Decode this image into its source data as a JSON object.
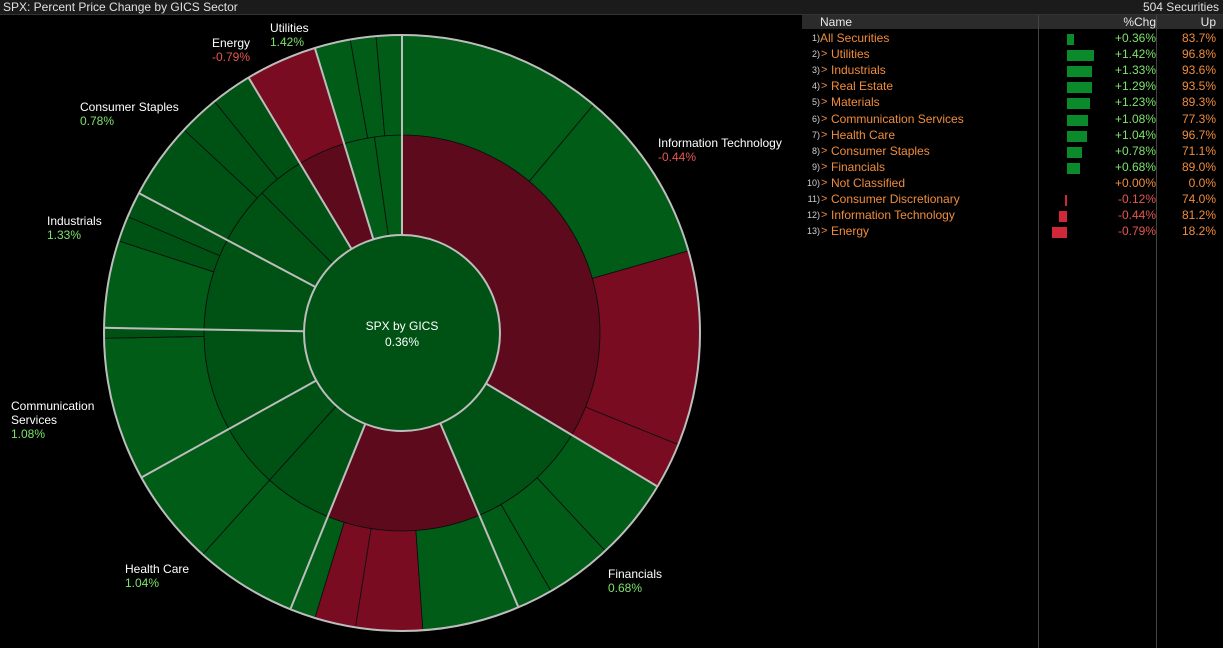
{
  "header": {
    "title": "SPX: Percent Price Change by GICS Sector",
    "count": "504 Securities"
  },
  "center": {
    "label": "SPX by GICS",
    "value": "0.36%"
  },
  "sector_labels": [
    {
      "name": "Utilities",
      "value": "1.42%",
      "dir": "pos"
    },
    {
      "name": "Energy",
      "value": "-0.79%",
      "dir": "neg"
    },
    {
      "name": "Consumer Staples",
      "value": "0.78%",
      "dir": "pos"
    },
    {
      "name": "Information Technology",
      "value": "-0.44%",
      "dir": "neg"
    },
    {
      "name": "Industrials",
      "value": "1.33%",
      "dir": "pos"
    },
    {
      "name": "Communication",
      "name2": "Services",
      "value": "1.08%",
      "dir": "pos"
    },
    {
      "name": "Health Care",
      "value": "1.04%",
      "dir": "pos"
    },
    {
      "name": "Financials",
      "value": "0.68%",
      "dir": "pos"
    }
  ],
  "table": {
    "columns": {
      "name": "Name",
      "chg": "%Chg",
      "up": "Up"
    },
    "rows": [
      {
        "num": "1)",
        "name": "All Securities",
        "caret": "",
        "chg": "+0.36%",
        "up": "83.7%",
        "value": 0.36
      },
      {
        "num": "2)",
        "name": "Utilities",
        "caret": ">",
        "chg": "+1.42%",
        "up": "96.8%",
        "value": 1.42
      },
      {
        "num": "3)",
        "name": "Industrials",
        "caret": ">",
        "chg": "+1.33%",
        "up": "93.6%",
        "value": 1.33
      },
      {
        "num": "4)",
        "name": "Real Estate",
        "caret": ">",
        "chg": "+1.29%",
        "up": "93.5%",
        "value": 1.29
      },
      {
        "num": "5)",
        "name": "Materials",
        "caret": ">",
        "chg": "+1.23%",
        "up": "89.3%",
        "value": 1.23
      },
      {
        "num": "6)",
        "name": "Communication Services",
        "caret": ">",
        "chg": "+1.08%",
        "up": "77.3%",
        "value": 1.08
      },
      {
        "num": "7)",
        "name": "Health Care",
        "caret": ">",
        "chg": "+1.04%",
        "up": "96.7%",
        "value": 1.04
      },
      {
        "num": "8)",
        "name": "Consumer Staples",
        "caret": ">",
        "chg": "+0.78%",
        "up": "71.1%",
        "value": 0.78
      },
      {
        "num": "9)",
        "name": "Financials",
        "caret": ">",
        "chg": "+0.68%",
        "up": "89.0%",
        "value": 0.68
      },
      {
        "num": "10)",
        "name": "Not Classified",
        "caret": ">",
        "chg": "+0.00%",
        "up": "0.0%",
        "value": 0.0
      },
      {
        "num": "11)",
        "name": "Consumer Discretionary",
        "caret": ">",
        "chg": "-0.12%",
        "up": "74.0%",
        "value": -0.12
      },
      {
        "num": "12)",
        "name": "Information Technology",
        "caret": ">",
        "chg": "-0.44%",
        "up": "81.2%",
        "value": -0.44
      },
      {
        "num": "13)",
        "name": "Energy",
        "caret": ">",
        "chg": "-0.79%",
        "up": "18.2%",
        "value": -0.79
      }
    ]
  },
  "colors": {
    "up_dark": "#005214",
    "up": "#005c17",
    "down_dark": "#5c0a1c",
    "down": "#7a0c22",
    "bar_up": "#0a8a2a",
    "bar_down": "#d0283a"
  }
}
